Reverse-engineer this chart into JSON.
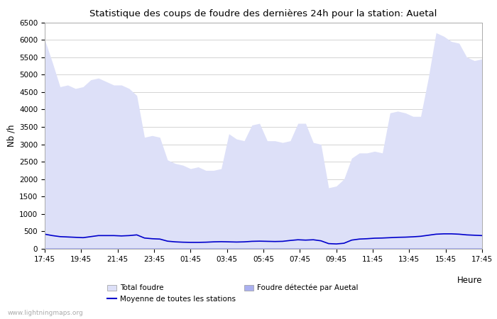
{
  "title": "Statistique des coups de foudre des dernières 24h pour la station: Auetal",
  "xlabel": "Heure",
  "ylabel": "Nb /h",
  "x_labels": [
    "17:45",
    "19:45",
    "21:45",
    "23:45",
    "01:45",
    "03:45",
    "05:45",
    "07:45",
    "09:45",
    "11:45",
    "13:45",
    "15:45",
    "17:45"
  ],
  "ylim": [
    0,
    6500
  ],
  "yticks": [
    0,
    500,
    1000,
    1500,
    2000,
    2500,
    3000,
    3500,
    4000,
    4500,
    5000,
    5500,
    6000,
    6500
  ],
  "bg_color": "#ffffff",
  "plot_bg_color": "#ffffff",
  "grid_color": "#cccccc",
  "total_foudre_color": "#dde0f8",
  "foudre_auetal_color": "#aab0f0",
  "moyenne_color": "#0000cc",
  "watermark": "www.lightningmaps.org",
  "legend_entries": [
    "Total foudre",
    "Moyenne de toutes les stations",
    "Foudre détectée par Auetal"
  ],
  "total_foudre": [
    6000,
    5350,
    4650,
    4700,
    4600,
    4650,
    4850,
    4900,
    4800,
    4700,
    4700,
    4600,
    4400,
    3200,
    3250,
    3200,
    2550,
    2450,
    2400,
    2300,
    2350,
    2250,
    2250,
    2300,
    3300,
    3150,
    3100,
    3550,
    3600,
    3100,
    3100,
    3050,
    3100,
    3600,
    3600,
    3050,
    3000,
    1750,
    1800,
    2000,
    2600,
    2750,
    2750,
    2800,
    2750,
    3900,
    3950,
    3900,
    3800,
    3800,
    4900,
    6200,
    6100,
    5950,
    5900,
    5500,
    5400,
    5450
  ],
  "foudre_auetal": [
    20,
    20,
    20,
    20,
    20,
    20,
    20,
    20,
    20,
    20,
    20,
    20,
    20,
    20,
    20,
    20,
    20,
    20,
    20,
    20,
    20,
    20,
    20,
    20,
    20,
    20,
    20,
    20,
    20,
    20,
    20,
    20,
    20,
    20,
    20,
    20,
    20,
    20,
    20,
    20,
    20,
    20,
    20,
    20,
    20,
    20,
    20,
    20,
    20,
    20,
    20,
    20,
    20,
    20,
    20,
    20,
    20,
    20
  ],
  "moyenne": [
    420,
    380,
    350,
    340,
    330,
    320,
    350,
    380,
    380,
    380,
    370,
    380,
    400,
    310,
    290,
    280,
    220,
    200,
    190,
    185,
    185,
    190,
    200,
    205,
    200,
    195,
    200,
    215,
    220,
    215,
    210,
    215,
    240,
    260,
    250,
    260,
    230,
    150,
    140,
    160,
    250,
    280,
    290,
    305,
    310,
    320,
    330,
    335,
    345,
    360,
    390,
    420,
    430,
    430,
    420,
    400,
    390,
    380
  ]
}
